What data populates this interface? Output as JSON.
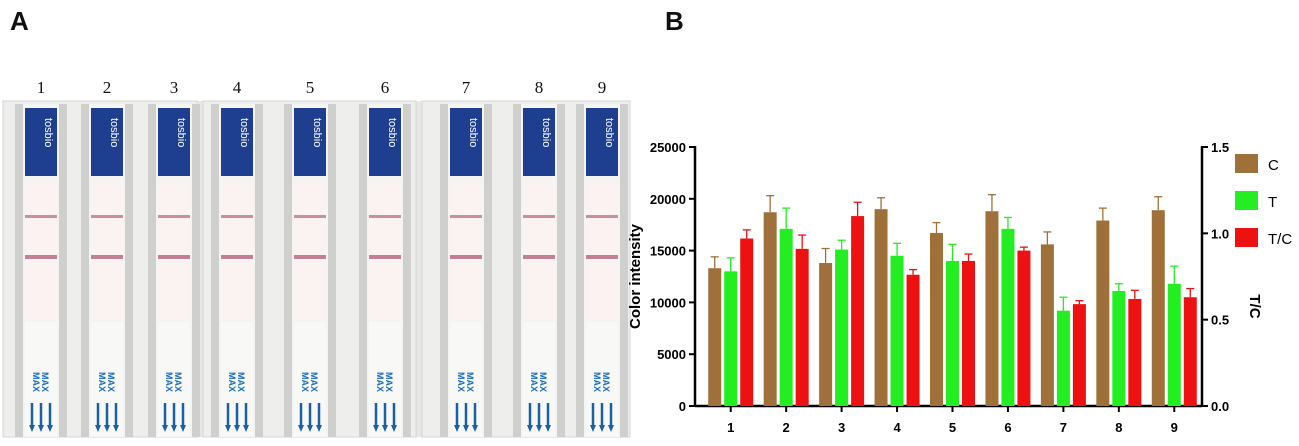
{
  "panels": {
    "a_label": "A",
    "b_label": "B"
  },
  "photo": {
    "strip_numbers": [
      "1",
      "2",
      "3",
      "4",
      "5",
      "6",
      "7",
      "8",
      "9"
    ],
    "brand_text": "tosbio",
    "max_text": "MAX"
  },
  "chart_data": {
    "type": "bar",
    "categories": [
      "1",
      "2",
      "3",
      "4",
      "5",
      "6",
      "7",
      "8",
      "9"
    ],
    "series": [
      {
        "name": "C",
        "axis": "left",
        "color": "#a0703a",
        "values": [
          13300,
          18700,
          13800,
          19000,
          16700,
          18800,
          15600,
          17900,
          18900
        ],
        "errors": [
          1100,
          1600,
          1400,
          1100,
          1000,
          1600,
          1200,
          1200,
          1300
        ]
      },
      {
        "name": "T",
        "axis": "left",
        "color": "#22ee22",
        "values": [
          13000,
          17100,
          15100,
          14500,
          14000,
          17100,
          9200,
          11100,
          11800
        ],
        "errors": [
          1300,
          2000,
          900,
          1200,
          1600,
          1100,
          1300,
          700,
          1700
        ]
      },
      {
        "name": "T/C",
        "axis": "right",
        "color": "#ee1111",
        "values": [
          0.97,
          0.91,
          1.1,
          0.76,
          0.84,
          0.9,
          0.59,
          0.62,
          0.63
        ],
        "errors": [
          0.05,
          0.08,
          0.08,
          0.03,
          0.04,
          0.02,
          0.02,
          0.05,
          0.05
        ]
      }
    ],
    "y_left": {
      "label": "Color intensity",
      "lim": [
        0,
        25000
      ],
      "ticks": [
        "0",
        "5000",
        "10000",
        "15000",
        "20000",
        "25000"
      ]
    },
    "y_right": {
      "label": "T/C",
      "lim": [
        0,
        1.5
      ],
      "ticks": [
        "0.0",
        "0.5",
        "1.0",
        "1.5"
      ]
    },
    "legend": [
      "C",
      "T",
      "T/C"
    ],
    "legend_position": "right",
    "grid": false
  }
}
